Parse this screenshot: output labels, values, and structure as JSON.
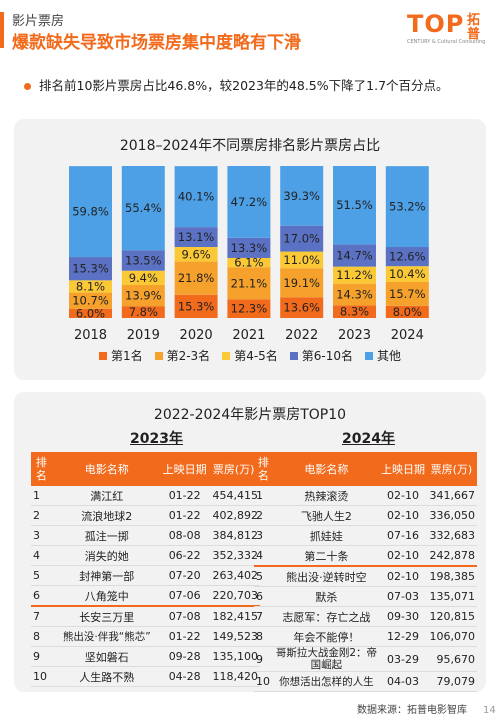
{
  "header": {
    "category": "影片票房",
    "title": "爆款缺失导致市场票房集中度略有下滑"
  },
  "logo": {
    "text": "TOP",
    "cn": "拓普",
    "sub": "CENTURY & Cultural Consulting"
  },
  "summary": "排名前10影片票房占比46.8%，较2023年的48.5%下降了1.7个百分点。",
  "colors": {
    "accent": "#f26a1b",
    "s1": "#f26a1b",
    "s2": "#f5a12c",
    "s3": "#fbc836",
    "s4": "#5b72c4",
    "s5": "#4d9fe6"
  },
  "chart_data": {
    "type": "bar",
    "stacked": "100%",
    "title": "2018–2024年不同票房排名影片票房占比",
    "categories": [
      "2018",
      "2019",
      "2020",
      "2021",
      "2022",
      "2023",
      "2024"
    ],
    "series": [
      {
        "name": "第1名",
        "values": [
          6.0,
          7.8,
          15.3,
          12.3,
          13.6,
          8.3,
          8.0
        ]
      },
      {
        "name": "第2-3名",
        "values": [
          10.7,
          13.9,
          21.8,
          21.1,
          19.1,
          14.3,
          15.7
        ]
      },
      {
        "name": "第4-5名",
        "values": [
          8.1,
          9.4,
          9.6,
          6.1,
          11.0,
          11.2,
          10.4
        ]
      },
      {
        "name": "第6-10名",
        "values": [
          15.3,
          13.5,
          13.1,
          13.3,
          17.0,
          14.7,
          12.6
        ]
      },
      {
        "name": "其他",
        "values": [
          59.8,
          55.4,
          40.1,
          47.2,
          39.3,
          51.5,
          53.2
        ]
      }
    ],
    "legend_position": "bottom"
  },
  "top10": {
    "title": "2022-2024年影片票房TOP10",
    "headers": {
      "rank": "排名",
      "name": "电影名称",
      "date": "上映日期",
      "box": "票房(万)"
    },
    "y2023": {
      "label": "2023年",
      "rows": [
        {
          "rank": "1",
          "name": "满江红",
          "date": "01-22",
          "box": "454,415"
        },
        {
          "rank": "2",
          "name": "流浪地球2",
          "date": "01-22",
          "box": "402,892"
        },
        {
          "rank": "3",
          "name": "孤注一掷",
          "date": "08-08",
          "box": "384,812"
        },
        {
          "rank": "4",
          "name": "消失的她",
          "date": "06-22",
          "box": "352,332"
        },
        {
          "rank": "5",
          "name": "封神第一部",
          "date": "07-20",
          "box": "263,402"
        },
        {
          "rank": "6",
          "name": "八角笼中",
          "date": "07-06",
          "box": "220,703"
        },
        {
          "rank": "7",
          "name": "长安三万里",
          "date": "07-08",
          "box": "182,415"
        },
        {
          "rank": "8",
          "name": "熊出没·伴我“熊芯”",
          "date": "01-22",
          "box": "149,523"
        },
        {
          "rank": "9",
          "name": "坚如磐石",
          "date": "09-28",
          "box": "135,100"
        },
        {
          "rank": "10",
          "name": "人生路不熟",
          "date": "04-28",
          "box": "118,420"
        }
      ]
    },
    "y2024": {
      "label": "2024年",
      "rows": [
        {
          "rank": "1",
          "name": "热辣滚烫",
          "date": "02-10",
          "box": "341,667"
        },
        {
          "rank": "2",
          "name": "飞驰人生2",
          "date": "02-10",
          "box": "336,050"
        },
        {
          "rank": "3",
          "name": "抓娃娃",
          "date": "07-16",
          "box": "332,683"
        },
        {
          "rank": "4",
          "name": "第二十条",
          "date": "02-10",
          "box": "242,878"
        },
        {
          "rank": "5",
          "name": "熊出没·逆转时空",
          "date": "02-10",
          "box": "198,385"
        },
        {
          "rank": "6",
          "name": "默杀",
          "date": "07-03",
          "box": "135,071"
        },
        {
          "rank": "7",
          "name": "志愿军：存亡之战",
          "date": "09-30",
          "box": "120,815"
        },
        {
          "rank": "8",
          "name": "年会不能停！",
          "date": "12-29",
          "box": "106,070"
        },
        {
          "rank": "9",
          "name": "哥斯拉大战金刚2：帝国崛起",
          "date": "03-29",
          "box": "95,670"
        },
        {
          "rank": "10",
          "name": "你想活出怎样的人生",
          "date": "04-03",
          "box": "79,079"
        }
      ]
    }
  },
  "footer": {
    "source": "数据来源：拓普电影智库",
    "page": "14"
  }
}
